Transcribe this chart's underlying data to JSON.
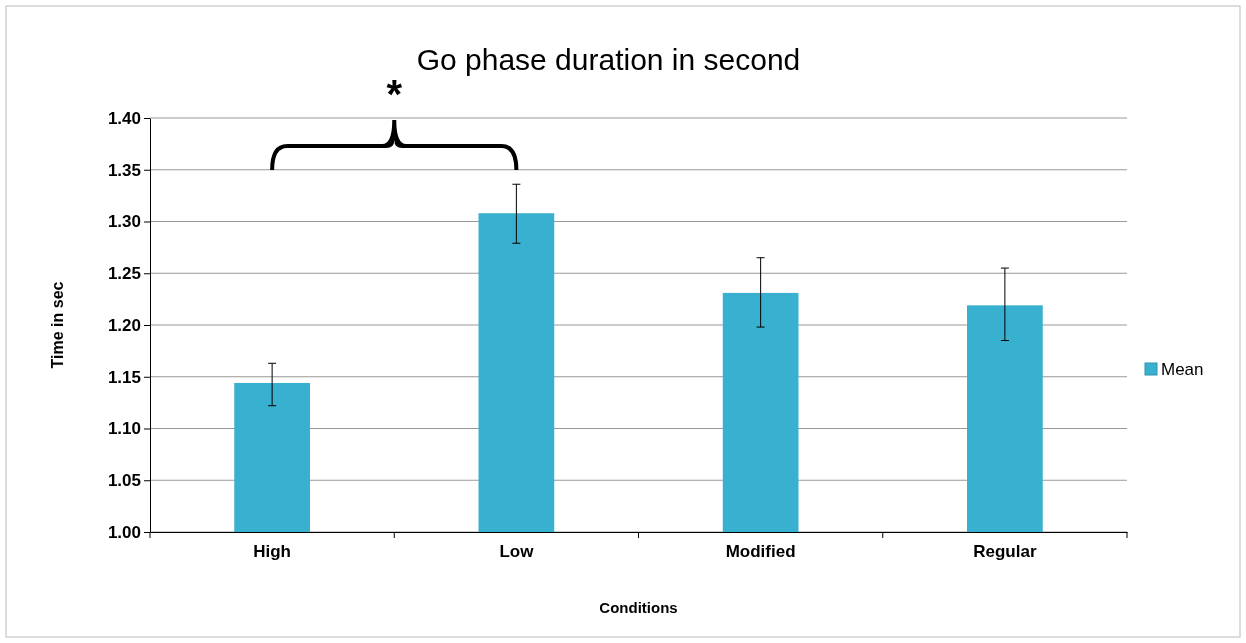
{
  "chart_data": {
    "type": "bar",
    "title": "Go phase duration in second",
    "xlabel": "Conditions",
    "ylabel": "Time in sec",
    "categories": [
      "High",
      "Low",
      "Modified",
      "Regular"
    ],
    "series": [
      {
        "name": "Mean",
        "color": "#38b0cf",
        "values": [
          1.144,
          1.308,
          1.231,
          1.219
        ],
        "errors": [
          [
            1.122,
            1.163
          ],
          [
            1.279,
            1.336
          ],
          [
            1.198,
            1.265
          ],
          [
            1.185,
            1.255
          ]
        ]
      }
    ],
    "ylim": [
      1.0,
      1.4
    ],
    "yticks": [
      {
        "value": 1.0,
        "label": "1.00"
      },
      {
        "value": 1.05,
        "label": "1.05"
      },
      {
        "value": 1.1,
        "label": "1.10"
      },
      {
        "value": 1.15,
        "label": "1.15"
      },
      {
        "value": 1.2,
        "label": "1.20"
      },
      {
        "value": 1.25,
        "label": "1.25"
      },
      {
        "value": 1.3,
        "label": "1.30"
      },
      {
        "value": 1.35,
        "label": "1.35"
      },
      {
        "value": 1.4,
        "label": "1.40"
      }
    ],
    "grid": "y",
    "legend": "right",
    "annotations": [
      "*"
    ]
  }
}
